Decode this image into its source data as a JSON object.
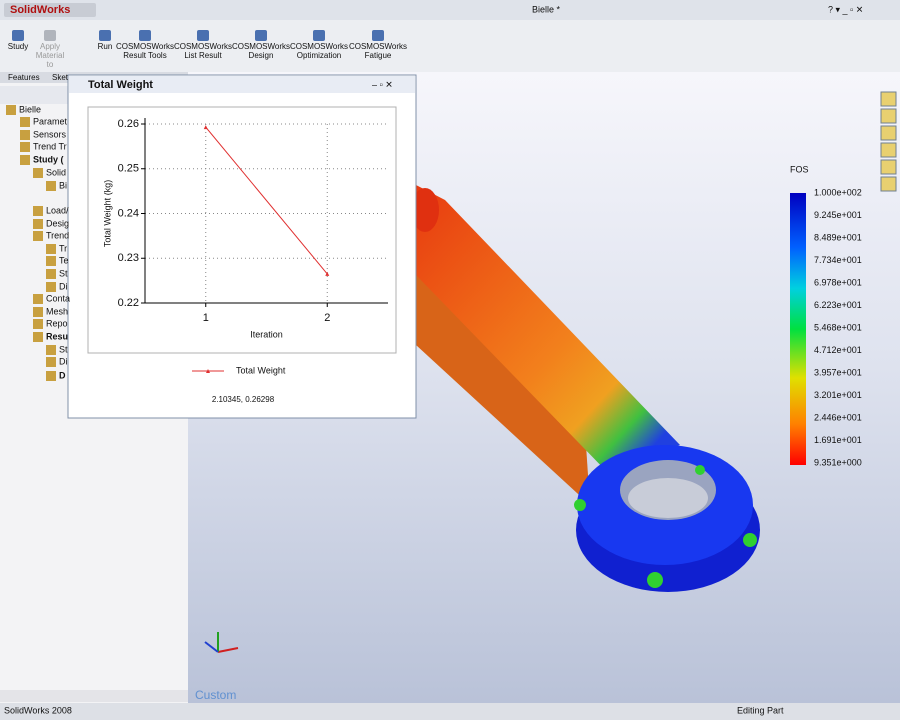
{
  "window": {
    "app": "SolidWorks",
    "title": "Bielle *"
  },
  "toolbar": {
    "buttons": [
      [
        "Study"
      ],
      [
        "Apply",
        "Material",
        "to"
      ],
      [
        "Run"
      ],
      [
        "COSMOSWorks",
        "Result Tools"
      ],
      [
        "COSMOSWorks",
        "List Result"
      ],
      [
        "COSMOSWorks",
        "Design"
      ],
      [
        "COSMOSWorks",
        "Optimization"
      ],
      [
        "COSMOSWorks",
        "Fatigue"
      ]
    ]
  },
  "panel": {
    "tabs": [
      "Features",
      "Sket"
    ],
    "tree": [
      "Bielle",
      "Paramet",
      "Sensors",
      "Trend Tr",
      "Study (",
      "Solid",
      "Bi",
      "Load/",
      "Desig",
      "Trend",
      "Tr",
      "Te",
      "St",
      "Di",
      "Conta",
      "Mesh",
      "Repo",
      "Resu",
      "St",
      "Di",
      "D"
    ]
  },
  "chart_window": {
    "readout": "2.10345, 0.26298"
  },
  "chart_data": {
    "type": "line",
    "title": "Total Weight",
    "xlabel": "Iteration",
    "ylabel": "Total Weight (kg)",
    "x": [
      1,
      2
    ],
    "series": [
      {
        "name": "Total Weight",
        "color": "#e03030",
        "values": [
          0.2593,
          0.2265
        ]
      }
    ],
    "xlim": [
      0.5,
      2.5
    ],
    "xticks": [
      1,
      2
    ],
    "ylim": [
      0.22,
      0.26
    ],
    "yticks": [
      0.22,
      0.23,
      0.24,
      0.25,
      0.26
    ],
    "grid": true,
    "legend": "bottom"
  },
  "viewport": {
    "view_name": "Custom",
    "fos_legend": {
      "title": "FOS",
      "labels": [
        "1.000e+002",
        "9.245e+001",
        "8.489e+001",
        "7.734e+001",
        "6.978e+001",
        "6.223e+001",
        "5.468e+001",
        "4.712e+001",
        "3.957e+001",
        "3.201e+001",
        "2.446e+001",
        "1.691e+001",
        "9.351e+000"
      ]
    }
  },
  "status_bar": {
    "app_version": "SolidWorks 2008",
    "mode": "Editing Part"
  }
}
